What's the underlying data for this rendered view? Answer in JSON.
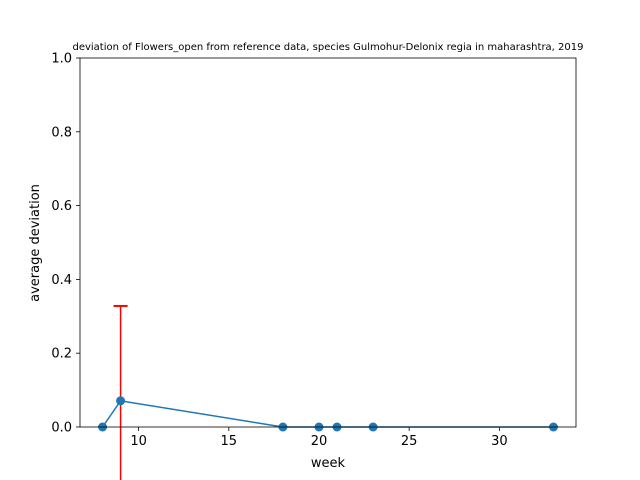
{
  "chart_data": {
    "type": "line",
    "title": "deviation of Flowers_open from reference data, species Gulmohur-Delonix regia in maharashtra, 2019",
    "xlabel": "week",
    "ylabel": "average deviation",
    "xlim": [
      6.75,
      34.25
    ],
    "ylim": [
      0.0,
      1.0
    ],
    "x_ticks": [
      10,
      15,
      20,
      25,
      30
    ],
    "y_ticks": [
      0.0,
      0.2,
      0.4,
      0.6,
      0.8,
      1.0
    ],
    "x_tick_labels": [
      "10",
      "15",
      "20",
      "25",
      "30"
    ],
    "y_tick_labels": [
      "0.0",
      "0.2",
      "0.4",
      "0.6",
      "0.8",
      "1.0"
    ],
    "grid": false,
    "series": [
      {
        "color": "#1f77b4",
        "x": [
          8,
          9,
          18,
          20,
          21,
          23,
          33
        ],
        "y": [
          0.0,
          0.071,
          0.0,
          0.0,
          0.0,
          0.0,
          0.0
        ],
        "error_upper": [
          0.0,
          0.257,
          0.0,
          0.0,
          0.0,
          0.0,
          0.0
        ],
        "error_color": "#ff0000"
      }
    ]
  }
}
